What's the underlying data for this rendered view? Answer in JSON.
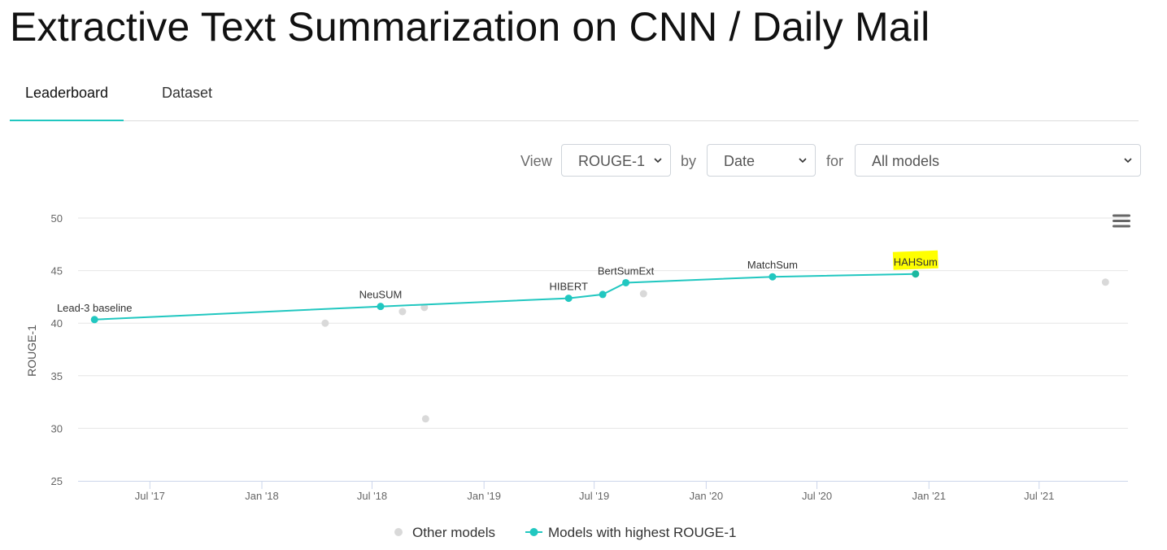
{
  "page": {
    "title": "Extractive Text Summarization on CNN / Daily Mail"
  },
  "tabs": [
    {
      "label": "Leaderboard",
      "active": true
    },
    {
      "label": "Dataset",
      "active": false
    }
  ],
  "controls": {
    "view_label": "View",
    "view_value": "ROUGE-1",
    "by_label": "by",
    "by_value": "Date",
    "for_label": "for",
    "for_value": "All models"
  },
  "colors": {
    "accent": "#21c7c0",
    "other_point": "#d9d9d9",
    "highlight": "#ffff00"
  },
  "icons": {
    "chart_menu": "hamburger-menu-icon",
    "select_arrow": "chevron-down-icon"
  },
  "chart_data": {
    "type": "scatter",
    "ylabel": "ROUGE-1",
    "ylim": [
      25,
      50
    ],
    "yticks": [
      25,
      30,
      35,
      40,
      45,
      50
    ],
    "xlim": [
      "2017-03-05",
      "2021-11-24"
    ],
    "xticks": [
      {
        "date": "2017-07-01",
        "label": "Jul '17"
      },
      {
        "date": "2018-01-01",
        "label": "Jan '18"
      },
      {
        "date": "2018-07-01",
        "label": "Jul '18"
      },
      {
        "date": "2019-01-01",
        "label": "Jan '19"
      },
      {
        "date": "2019-07-01",
        "label": "Jul '19"
      },
      {
        "date": "2020-01-01",
        "label": "Jan '20"
      },
      {
        "date": "2020-07-01",
        "label": "Jul '20"
      },
      {
        "date": "2021-01-01",
        "label": "Jan '21"
      },
      {
        "date": "2021-07-01",
        "label": "Jul '21"
      }
    ],
    "grid": true,
    "legend": {
      "position": "bottom-center",
      "entries": [
        "Other models",
        "Models with highest ROUGE-1"
      ]
    },
    "series": [
      {
        "name": "Other models",
        "points": [
          {
            "date": "2018-04-15",
            "y": 40.0
          },
          {
            "date": "2018-08-20",
            "y": 41.1
          },
          {
            "date": "2018-09-25",
            "y": 41.5
          },
          {
            "date": "2018-09-27",
            "y": 30.9
          },
          {
            "date": "2019-09-20",
            "y": 42.8
          },
          {
            "date": "2021-10-18",
            "y": 43.9
          }
        ]
      },
      {
        "name": "Models with highest ROUGE-1",
        "points": [
          {
            "date": "2017-04-01",
            "y": 40.34,
            "label": "Lead-3 baseline"
          },
          {
            "date": "2018-07-15",
            "y": 41.59,
            "label": "NeuSUM"
          },
          {
            "date": "2019-05-20",
            "y": 42.37,
            "label": "HIBERT"
          },
          {
            "date": "2019-07-15",
            "y": 42.73
          },
          {
            "date": "2019-08-22",
            "y": 43.85,
            "label": "BertSumExt"
          },
          {
            "date": "2020-04-19",
            "y": 44.41,
            "label": "MatchSum"
          },
          {
            "date": "2020-12-10",
            "y": 44.68,
            "label": "HAHSum",
            "highlight": true
          }
        ]
      }
    ]
  }
}
